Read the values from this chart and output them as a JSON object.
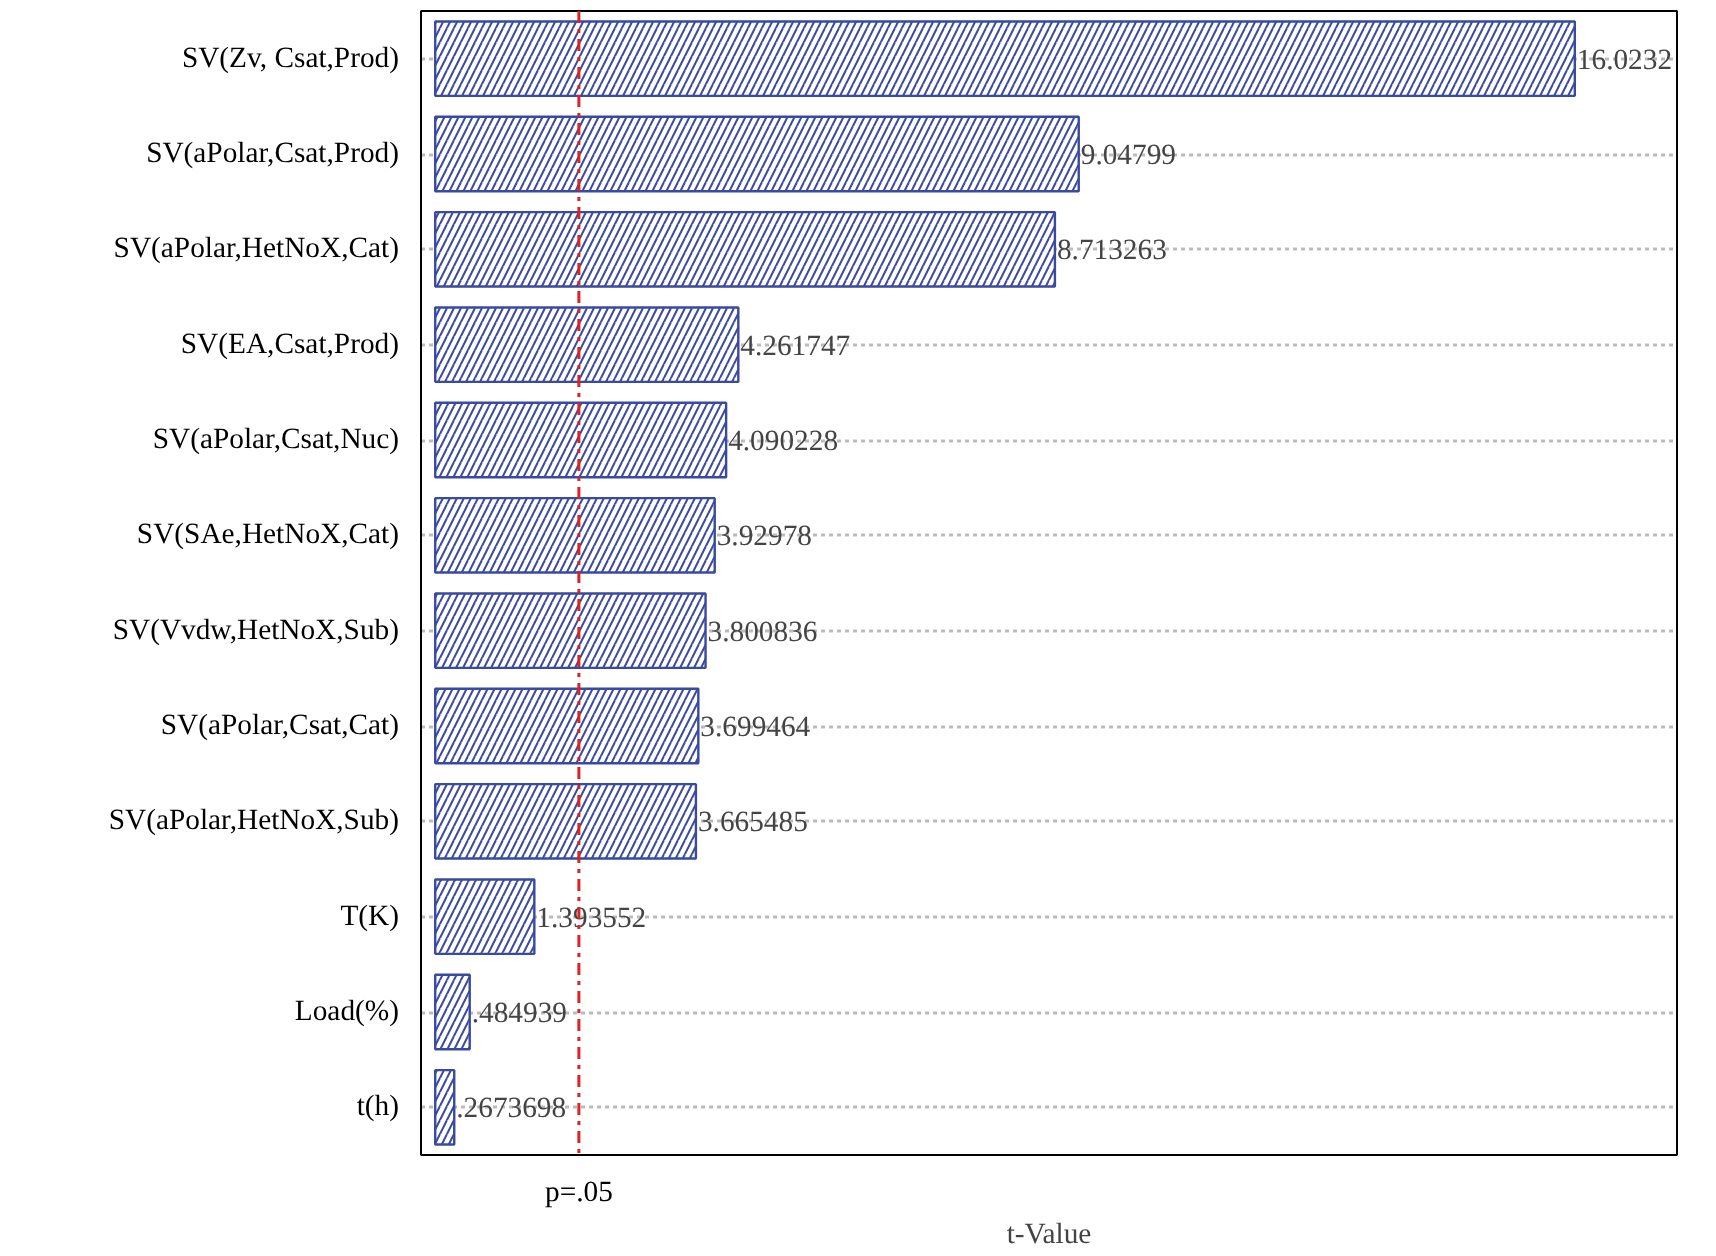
{
  "chart_data": {
    "type": "bar",
    "orientation": "horizontal",
    "xlabel": "t-Value",
    "categories": [
      "SV(Zv, Csat,Prod)",
      "SV(aPolar,Csat,Prod)",
      "SV(aPolar,HetNoX,Cat)",
      "SV(EA,Csat,Prod)",
      "SV(aPolar,Csat,Nuc)",
      "SV(SAe,HetNoX,Cat)",
      "SV(Vvdw,HetNoX,Sub)",
      "SV(aPolar,Csat,Cat)",
      "SV(aPolar,HetNoX,Sub)",
      "T(K)",
      "Load(%)",
      "t(h)"
    ],
    "values": [
      16.0232,
      9.04799,
      8.713263,
      4.261747,
      4.090228,
      3.92978,
      3.800836,
      3.699464,
      3.665485,
      1.393552,
      0.484939,
      0.2673698
    ],
    "value_labels": [
      "16.0232",
      "9.04799",
      "8.713263",
      "4.261747",
      "4.090228",
      "3.92978",
      "3.800836",
      "3.699464",
      "3.665485",
      "1.393552",
      ".484939",
      ".2673698"
    ],
    "color": "#3a4aa0",
    "xlim": [
      -0.2,
      17.46
    ],
    "ref_lines": [
      {
        "axis": "x",
        "value": 2.02,
        "label": "p=.05",
        "color": "#dd2222",
        "line_style": "dashdot"
      }
    ],
    "grid": "y"
  }
}
